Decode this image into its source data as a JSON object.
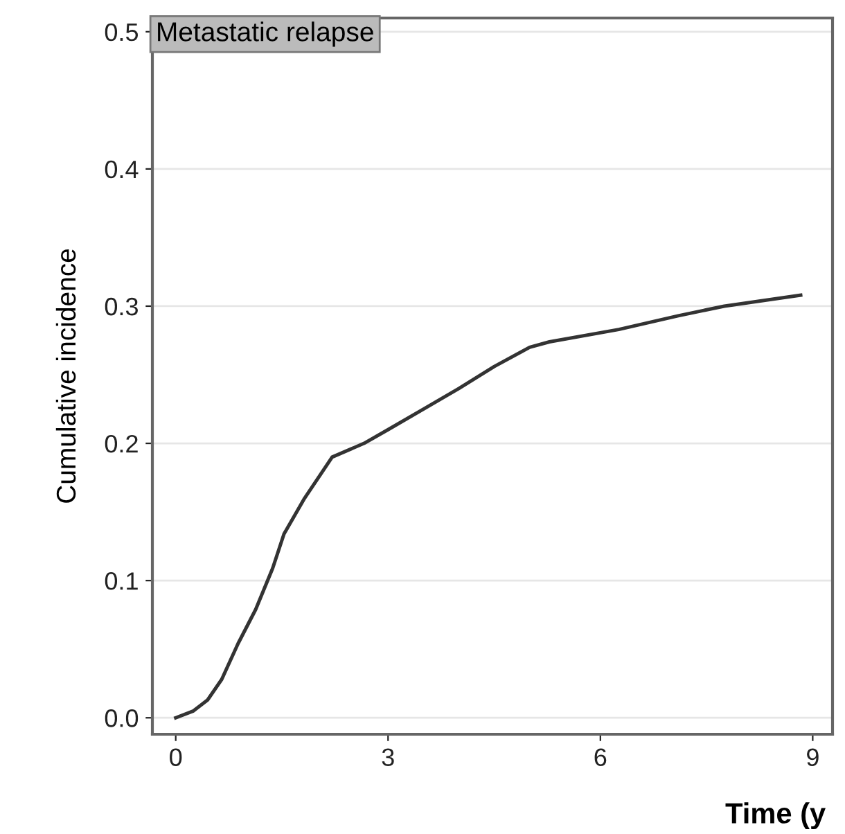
{
  "chart_data": {
    "type": "line",
    "xlabel": "Time (y",
    "ylabel": "Cumulative incidence",
    "annotations": [
      "Metastatic relapse"
    ],
    "series": [
      {
        "color": "#333333",
        "x": [
          0,
          0.25,
          0.45,
          0.65,
          0.88,
          1.13,
          1.37,
          1.53,
          1.82,
          2.21,
          2.66,
          3.0,
          3.5,
          4.0,
          4.5,
          5.0,
          5.28,
          6.26,
          7.1,
          7.75,
          8.83
        ],
        "values": [
          0,
          0.005,
          0.013,
          0.028,
          0.054,
          0.079,
          0.109,
          0.134,
          0.16,
          0.19,
          0.2,
          0.21,
          0.225,
          0.24,
          0.256,
          0.27,
          0.274,
          0.283,
          0.293,
          0.3,
          0.308
        ]
      }
    ],
    "xlim": [
      -0.33,
      9.28
    ],
    "ylim": [
      -0.012,
      0.51
    ],
    "xticks": [
      0,
      3,
      6,
      9
    ],
    "yticks": [
      {
        "value": 0,
        "label": "0.0"
      },
      {
        "value": 0.1,
        "label": "0.1"
      },
      {
        "value": 0.2,
        "label": "0.2"
      },
      {
        "value": 0.3,
        "label": "0.3"
      },
      {
        "value": 0.4,
        "label": "0.4"
      },
      {
        "value": 0.5,
        "label": "0.5"
      }
    ],
    "grid": "y",
    "line_style": "solid"
  }
}
